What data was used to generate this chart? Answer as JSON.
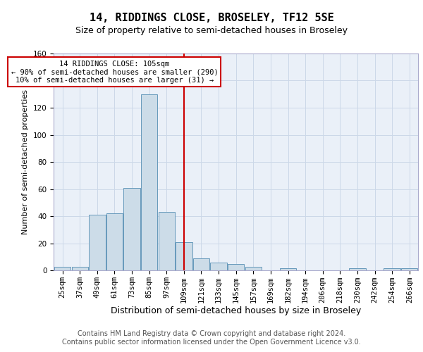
{
  "title": "14, RIDDINGS CLOSE, BROSELEY, TF12 5SE",
  "subtitle": "Size of property relative to semi-detached houses in Broseley",
  "xlabel": "Distribution of semi-detached houses by size in Broseley",
  "ylabel": "Number of semi-detached properties",
  "categories": [
    "25sqm",
    "37sqm",
    "49sqm",
    "61sqm",
    "73sqm",
    "85sqm",
    "97sqm",
    "109sqm",
    "121sqm",
    "133sqm",
    "145sqm",
    "157sqm",
    "169sqm",
    "182sqm",
    "194sqm",
    "206sqm",
    "218sqm",
    "230sqm",
    "242sqm",
    "254sqm",
    "266sqm"
  ],
  "values": [
    3,
    3,
    41,
    42,
    61,
    130,
    43,
    21,
    9,
    6,
    5,
    3,
    0,
    2,
    0,
    0,
    0,
    2,
    0,
    2,
    2
  ],
  "bar_color": "#ccdce8",
  "bar_edge_color": "#6699bb",
  "property_size_index": 7,
  "vline_color": "#cc0000",
  "annotation_line1": "14 RIDDINGS CLOSE: 105sqm",
  "annotation_line2": "← 90% of semi-detached houses are smaller (290)",
  "annotation_line3": "10% of semi-detached houses are larger (31) →",
  "annotation_box_color": "#ffffff",
  "annotation_box_edge": "#cc0000",
  "footer1": "Contains HM Land Registry data © Crown copyright and database right 2024.",
  "footer2": "Contains public sector information licensed under the Open Government Licence v3.0.",
  "ylim": [
    0,
    160
  ],
  "yticks": [
    0,
    20,
    40,
    60,
    80,
    100,
    120,
    140,
    160
  ],
  "grid_color": "#ccd8e8",
  "bg_color": "#eaf0f8",
  "title_fontsize": 11,
  "subtitle_fontsize": 9,
  "ylabel_fontsize": 8,
  "xlabel_fontsize": 9,
  "tick_fontsize": 7.5,
  "ann_fontsize": 7.5,
  "footer_fontsize": 7
}
